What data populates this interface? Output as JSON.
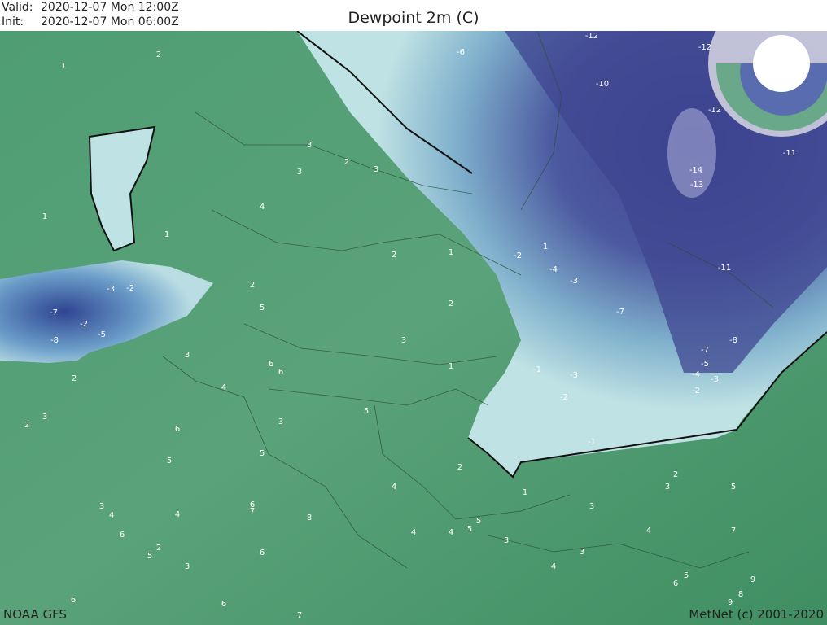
{
  "header": {
    "valid_label": "Valid:",
    "valid": "2020-12-07 Mon 12:00Z",
    "init_label": "Init:",
    "init": "2020-12-07 Mon 06:00Z",
    "title": "Dewpoint 2m (C)"
  },
  "footer": {
    "source": "NOAA GFS",
    "credit": "MetNet (c) 2001-2020"
  },
  "contour_labels": [
    -12,
    -12,
    -6,
    -10,
    -12,
    -11,
    -14,
    -13,
    -11,
    -7,
    -8,
    -7,
    -5,
    -4,
    -3,
    -2,
    -1,
    -3,
    -2,
    -1,
    1,
    -2,
    -4,
    -3,
    2,
    1,
    1,
    3,
    2,
    3,
    3,
    4,
    1,
    2,
    1,
    2,
    5,
    2,
    3,
    1,
    -7,
    -8,
    -5,
    -2,
    -3,
    -2,
    2,
    3,
    2,
    6,
    6,
    6,
    4,
    3,
    5,
    3,
    5,
    2,
    5,
    2,
    3,
    5,
    3,
    4,
    7,
    3,
    4,
    3,
    4,
    4,
    6,
    2,
    5,
    3,
    6,
    7,
    8,
    6,
    4,
    4,
    4,
    5,
    5,
    3,
    6,
    5,
    6,
    6,
    7,
    9,
    8,
    9,
    1
  ]
}
